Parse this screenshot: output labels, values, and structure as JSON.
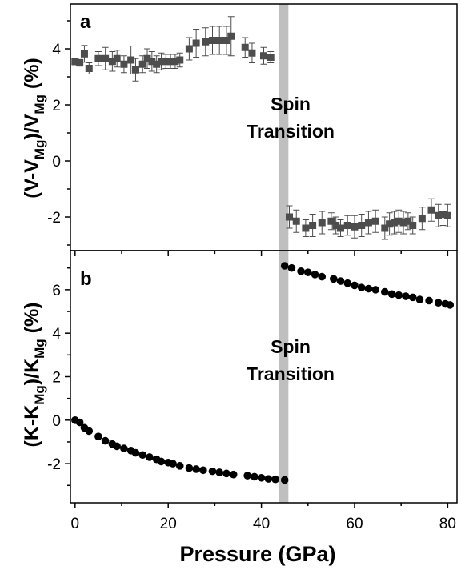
{
  "colors": {
    "marker_a": "#4d4d4d",
    "marker_b": "#000000",
    "band": "#bfbfbf",
    "axis": "#000000"
  },
  "chart_data": [
    {
      "type": "scatter",
      "panel_label": "a",
      "ylabel": "(V-V_Mg)/V_Mg (%)",
      "ylabel_parts": {
        "a": "(V-V",
        "sub1": "Mg",
        "b": ")/V",
        "sub2": "Mg",
        "c": " (%)"
      },
      "xlim": [
        -1,
        82
      ],
      "ylim": [
        -3.2,
        5.6
      ],
      "yticks": [
        -2,
        0,
        2,
        4
      ],
      "band": {
        "x0": 43.8,
        "x1": 45.8
      },
      "annotation": [
        "Spin",
        "Transition"
      ],
      "marker": "square",
      "error_bars": true,
      "points": [
        [
          0,
          3.55,
          0.12
        ],
        [
          1,
          3.5,
          0.12
        ],
        [
          2,
          3.82,
          0.3
        ],
        [
          3,
          3.3,
          0.2
        ],
        [
          5,
          3.65,
          0.25
        ],
        [
          6.5,
          3.65,
          0.4
        ],
        [
          8,
          3.55,
          0.35
        ],
        [
          9,
          3.65,
          0.3
        ],
        [
          10.5,
          3.45,
          0.3
        ],
        [
          12,
          3.6,
          0.5
        ],
        [
          13,
          3.25,
          0.4
        ],
        [
          14.5,
          3.45,
          0.3
        ],
        [
          15.5,
          3.65,
          0.35
        ],
        [
          16.5,
          3.55,
          0.35
        ],
        [
          17.5,
          3.45,
          0.3
        ],
        [
          18.5,
          3.55,
          0.3
        ],
        [
          19.5,
          3.55,
          0.25
        ],
        [
          20.5,
          3.55,
          0.25
        ],
        [
          21.5,
          3.55,
          0.25
        ],
        [
          22.5,
          3.6,
          0.25
        ],
        [
          24.5,
          4.0,
          0.4
        ],
        [
          26,
          4.2,
          0.5
        ],
        [
          28,
          4.25,
          0.5
        ],
        [
          29.5,
          4.3,
          0.5
        ],
        [
          31,
          4.3,
          0.5
        ],
        [
          32.5,
          4.3,
          0.5
        ],
        [
          33.5,
          4.45,
          0.7
        ],
        [
          36.5,
          4.05,
          0.35
        ],
        [
          38,
          3.85,
          0.35
        ],
        [
          40.5,
          3.75,
          0.3
        ],
        [
          42,
          3.7,
          0.2
        ],
        [
          46,
          -2.0,
          0.4
        ],
        [
          47.5,
          -2.15,
          0.4
        ],
        [
          49.5,
          -2.4,
          0.3
        ],
        [
          51,
          -2.3,
          0.4
        ],
        [
          53,
          -2.2,
          0.4
        ],
        [
          55,
          -2.15,
          0.3
        ],
        [
          56,
          -2.3,
          0.3
        ],
        [
          57,
          -2.4,
          0.3
        ],
        [
          58.5,
          -2.3,
          0.35
        ],
        [
          60,
          -2.35,
          0.4
        ],
        [
          61.5,
          -2.3,
          0.4
        ],
        [
          63,
          -2.2,
          0.4
        ],
        [
          64.5,
          -2.15,
          0.4
        ],
        [
          66.5,
          -2.4,
          0.4
        ],
        [
          67.5,
          -2.25,
          0.4
        ],
        [
          68.5,
          -2.2,
          0.4
        ],
        [
          69.5,
          -2.15,
          0.4
        ],
        [
          70.5,
          -2.2,
          0.4
        ],
        [
          71.5,
          -2.15,
          0.3
        ],
        [
          72.5,
          -2.3,
          0.3
        ],
        [
          74.5,
          -2.05,
          0.4
        ],
        [
          76.5,
          -1.75,
          0.4
        ],
        [
          78,
          -1.95,
          0.4
        ],
        [
          79,
          -1.9,
          0.4
        ],
        [
          80,
          -1.95,
          0.4
        ]
      ]
    },
    {
      "type": "scatter",
      "panel_label": "b",
      "ylabel": "(K-K_Mg)/K_Mg (%)",
      "ylabel_parts": {
        "a": "(K-K",
        "sub1": "Mg",
        "b": ")/K",
        "sub2": "Mg",
        "c": " (%)"
      },
      "xlabel": "Pressure (GPa)",
      "xlim": [
        -1,
        82
      ],
      "ylim": [
        -3.8,
        7.8
      ],
      "xticks": [
        0,
        20,
        40,
        60,
        80
      ],
      "yticks": [
        -2,
        0,
        2,
        4,
        6
      ],
      "band": {
        "x0": 43.8,
        "x1": 45.8
      },
      "annotation": [
        "Spin",
        "Transition"
      ],
      "marker": "circle",
      "points": [
        [
          0,
          0.0
        ],
        [
          1,
          -0.1
        ],
        [
          2,
          -0.35
        ],
        [
          3,
          -0.5
        ],
        [
          5,
          -0.75
        ],
        [
          6.5,
          -0.95
        ],
        [
          8,
          -1.1
        ],
        [
          9,
          -1.2
        ],
        [
          10.5,
          -1.3
        ],
        [
          12,
          -1.4
        ],
        [
          13,
          -1.5
        ],
        [
          14.5,
          -1.6
        ],
        [
          16,
          -1.7
        ],
        [
          17.5,
          -1.8
        ],
        [
          18.5,
          -1.9
        ],
        [
          20,
          -1.95
        ],
        [
          21,
          -2.0
        ],
        [
          22.5,
          -2.1
        ],
        [
          24.5,
          -2.2
        ],
        [
          26,
          -2.25
        ],
        [
          27.5,
          -2.3
        ],
        [
          29.5,
          -2.35
        ],
        [
          31,
          -2.4
        ],
        [
          32.5,
          -2.45
        ],
        [
          34,
          -2.5
        ],
        [
          37,
          -2.55
        ],
        [
          38.5,
          -2.6
        ],
        [
          40,
          -2.65
        ],
        [
          41.5,
          -2.7
        ],
        [
          43,
          -2.72
        ],
        [
          45,
          -2.75
        ],
        [
          45,
          7.1
        ],
        [
          46.5,
          7.0
        ],
        [
          48.5,
          6.85
        ],
        [
          50,
          6.8
        ],
        [
          51.5,
          6.7
        ],
        [
          53,
          6.6
        ],
        [
          55.5,
          6.5
        ],
        [
          57,
          6.4
        ],
        [
          58.5,
          6.3
        ],
        [
          60,
          6.2
        ],
        [
          61.5,
          6.1
        ],
        [
          63,
          6.05
        ],
        [
          64.5,
          6.0
        ],
        [
          66.5,
          5.9
        ],
        [
          68,
          5.8
        ],
        [
          69.5,
          5.75
        ],
        [
          71,
          5.7
        ],
        [
          72.5,
          5.65
        ],
        [
          74,
          5.55
        ],
        [
          76,
          5.5
        ],
        [
          78,
          5.4
        ],
        [
          79.5,
          5.35
        ],
        [
          80.5,
          5.3
        ]
      ]
    }
  ]
}
